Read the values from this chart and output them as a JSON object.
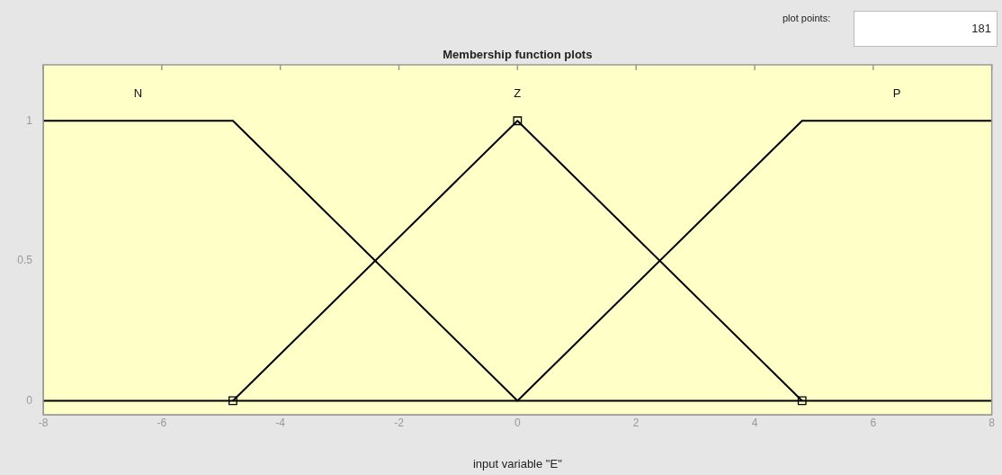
{
  "chart_data": {
    "type": "line",
    "title": "Membership function plots",
    "xlabel": "input variable \"E\"",
    "xlim": [
      -8,
      8
    ],
    "xticks": [
      -8,
      -6,
      -4,
      -2,
      0,
      2,
      4,
      6,
      8
    ],
    "ylim": [
      -0.05,
      1.2
    ],
    "yticks": [
      0,
      0.5,
      1
    ],
    "series": [
      {
        "name": "N",
        "color": "#000000",
        "x": [
          -8,
          -4.8,
          0,
          8
        ],
        "values": [
          1,
          1,
          0,
          0
        ],
        "marker": "none"
      },
      {
        "name": "Z",
        "color": "#000000",
        "x": [
          -4.8,
          0,
          4.8
        ],
        "values": [
          0,
          1,
          0
        ],
        "marker": "square"
      },
      {
        "name": "P",
        "color": "#000000",
        "x": [
          -8,
          0,
          4.8,
          8
        ],
        "values": [
          0,
          0,
          1,
          1
        ],
        "marker": "none"
      }
    ],
    "annotations": [
      "plot points:",
      "181"
    ],
    "legend": false
  }
}
